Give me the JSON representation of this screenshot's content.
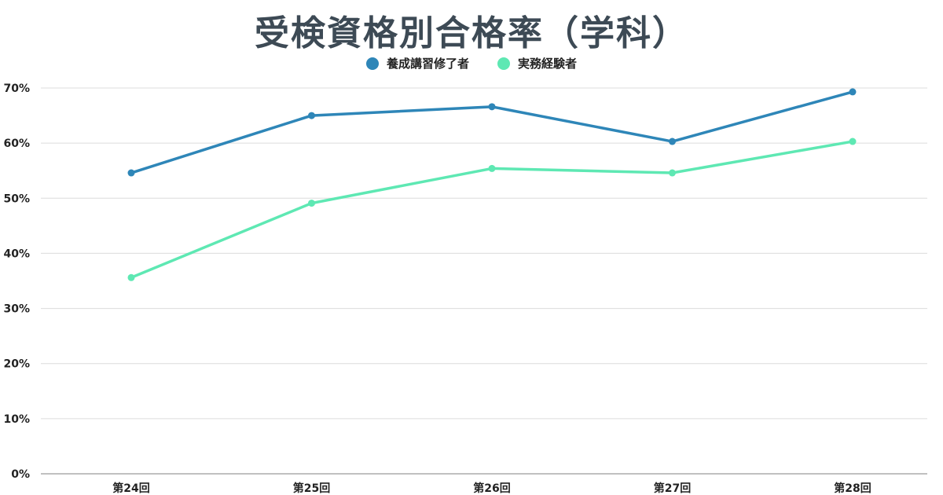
{
  "chart_data": {
    "type": "line",
    "title": "受検資格別合格率（学科）",
    "categories": [
      "第24回",
      "第25回",
      "第26回",
      "第27回",
      "第28回"
    ],
    "series": [
      {
        "name": "養成講習修了者",
        "color": "#2e86b8",
        "values": [
          54.6,
          65.0,
          66.6,
          60.3,
          69.3
        ]
      },
      {
        "name": "実務経験者",
        "color": "#5ee8b3",
        "values": [
          35.6,
          49.1,
          55.4,
          54.6,
          60.3
        ]
      }
    ],
    "ylim": [
      0,
      70
    ],
    "yticks": [
      0,
      10,
      20,
      30,
      40,
      50,
      60,
      70
    ],
    "ytick_labels": [
      "0%",
      "10%",
      "20%",
      "30%",
      "40%",
      "50%",
      "60%",
      "70%"
    ],
    "xlabel": "",
    "ylabel": "",
    "grid": true,
    "legend_position": "top-center"
  }
}
